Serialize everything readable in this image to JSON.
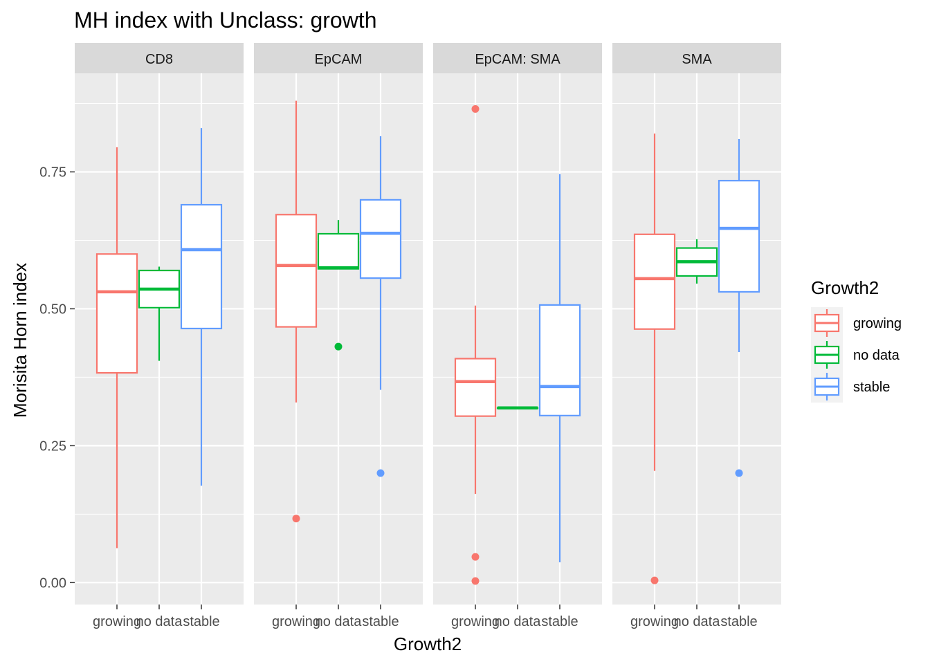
{
  "chart_data": {
    "type": "box",
    "title": "MH index with Unclass: growth",
    "xlabel": "Growth2",
    "ylabel": "Morisita Horn index",
    "ylim": [
      -0.04,
      0.93
    ],
    "y_ticks": [
      0.0,
      0.25,
      0.5,
      0.75
    ],
    "y_tick_labels": [
      "0.00",
      "0.25",
      "0.50",
      "0.75"
    ],
    "categories": [
      "growing",
      "no data",
      "stable"
    ],
    "legend": {
      "title": "Growth2",
      "placement": "right",
      "entries": [
        "growing",
        "no data",
        "stable"
      ]
    },
    "colors": {
      "growing": "#F8766D",
      "no data": "#00BA38",
      "stable": "#619CFF"
    },
    "grid": true,
    "panel_background": "#EBEBEB",
    "strip_background": "#D9D9D9",
    "facets": [
      {
        "label": "CD8",
        "boxes": [
          {
            "category": "growing",
            "min": 0.063,
            "q1": 0.383,
            "median": 0.531,
            "q3": 0.6,
            "max": 0.795,
            "outliers": []
          },
          {
            "category": "no data",
            "min": 0.405,
            "q1": 0.502,
            "median": 0.536,
            "q3": 0.57,
            "max": 0.577,
            "outliers": []
          },
          {
            "category": "stable",
            "min": 0.177,
            "q1": 0.464,
            "median": 0.608,
            "q3": 0.69,
            "max": 0.83,
            "outliers": []
          }
        ]
      },
      {
        "label": "EpCAM",
        "boxes": [
          {
            "category": "growing",
            "min": 0.329,
            "q1": 0.467,
            "median": 0.579,
            "q3": 0.672,
            "max": 0.88,
            "outliers": [
              0.117
            ]
          },
          {
            "category": "no data",
            "min": 0.573,
            "q1": 0.573,
            "median": 0.575,
            "q3": 0.637,
            "max": 0.662,
            "outliers": [
              0.431
            ]
          },
          {
            "category": "stable",
            "min": 0.352,
            "q1": 0.556,
            "median": 0.638,
            "q3": 0.699,
            "max": 0.815,
            "outliers": [
              0.2
            ]
          }
        ]
      },
      {
        "label": "EpCAM: SMA",
        "boxes": [
          {
            "category": "growing",
            "min": 0.162,
            "q1": 0.304,
            "median": 0.367,
            "q3": 0.409,
            "max": 0.506,
            "outliers": [
              0.865,
              0.047,
              0.003
            ]
          },
          {
            "category": "no data",
            "min": 0.319,
            "q1": 0.319,
            "median": 0.319,
            "q3": 0.319,
            "max": 0.319,
            "outliers": []
          },
          {
            "category": "stable",
            "min": 0.037,
            "q1": 0.305,
            "median": 0.358,
            "q3": 0.507,
            "max": 0.746,
            "outliers": []
          }
        ]
      },
      {
        "label": "SMA",
        "boxes": [
          {
            "category": "growing",
            "min": 0.204,
            "q1": 0.463,
            "median": 0.555,
            "q3": 0.636,
            "max": 0.82,
            "outliers": [
              0.004
            ]
          },
          {
            "category": "no data",
            "min": 0.546,
            "q1": 0.56,
            "median": 0.586,
            "q3": 0.611,
            "max": 0.627,
            "outliers": []
          },
          {
            "category": "stable",
            "min": 0.421,
            "q1": 0.531,
            "median": 0.647,
            "q3": 0.734,
            "max": 0.81,
            "outliers": [
              0.2
            ]
          }
        ]
      }
    ]
  }
}
